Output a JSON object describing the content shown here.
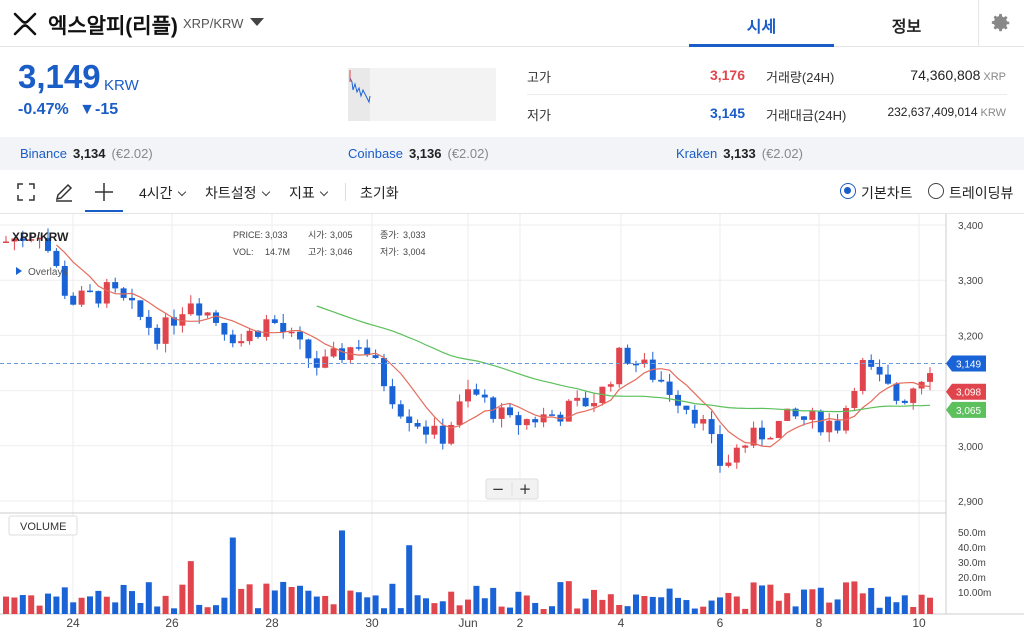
{
  "header": {
    "coin_name": "엑스알피(리플)",
    "pair": "XRP/KRW",
    "tabs": [
      {
        "label": "시세"
      },
      {
        "label": "정보"
      }
    ]
  },
  "summary": {
    "price": "3,149",
    "price_unit": "KRW",
    "change_pct": "-0.47%",
    "change_abs": "▼-15",
    "high_label": "고가",
    "high_value": "3,176",
    "low_label": "저가",
    "low_value": "3,145",
    "volume_label": "거래량(24H)",
    "volume_value": "74,360,808",
    "volume_unit": "XRP",
    "amount_label": "거래대금(24H)",
    "amount_value": "232,637,409,014",
    "amount_unit": "KRW"
  },
  "exchanges": [
    {
      "name": "Binance",
      "price": "3,134",
      "eur": "(€2.02)"
    },
    {
      "name": "Coinbase",
      "price": "3,136",
      "eur": "(€2.02)"
    },
    {
      "name": "Kraken",
      "price": "3,133",
      "eur": "(€2.02)"
    }
  ],
  "toolbar": {
    "interval": "4시간",
    "chart_settings": "차트설정",
    "indicators": "지표",
    "reset": "초기화",
    "basic_chart": "기본차트",
    "tradingview": "트레이딩뷰"
  },
  "chart": {
    "symbol": "XRP/KRW",
    "overlays_label": "Overlays",
    "legend": {
      "price_label": "PRICE:",
      "price": "3,033",
      "open_label": "시가:",
      "open": "3,005",
      "close_label": "종가:",
      "close": "3,033",
      "vol_label": "VOL:",
      "vol": "14.7M",
      "high_label": "고가:",
      "high": "3,046",
      "low_label": "저가:",
      "low": "3,004"
    },
    "volume_label": "VOLUME",
    "zoom_minus": "−",
    "zoom_plus": "+",
    "colors": {
      "up": "#e0444c",
      "down": "#1a63d6",
      "ma_short": "#e46c5c",
      "ma_long": "#5cc05c"
    }
  },
  "chart_data": {
    "type": "candlestick",
    "y_ticks": [
      "3,400",
      "3,300",
      "3,200",
      "3,100",
      "3,000",
      "2,900"
    ],
    "ylim": [
      2880,
      3420
    ],
    "volume_ticks": [
      "50.0m",
      "40.0m",
      "30.0m",
      "20.0m",
      "10.00m"
    ],
    "x_ticks": [
      "24",
      "26",
      "28",
      "30",
      "Jun",
      "2",
      "4",
      "6",
      "8",
      "10"
    ],
    "price_badges": [
      {
        "label": "3,149",
        "value": 3149,
        "color": "#1a63d6"
      },
      {
        "label": "3,098",
        "value": 3098,
        "color": "#e0444c"
      },
      {
        "label": "3,065",
        "value": 3065,
        "color": "#5cc05c"
      }
    ],
    "current_price": 3149
  }
}
